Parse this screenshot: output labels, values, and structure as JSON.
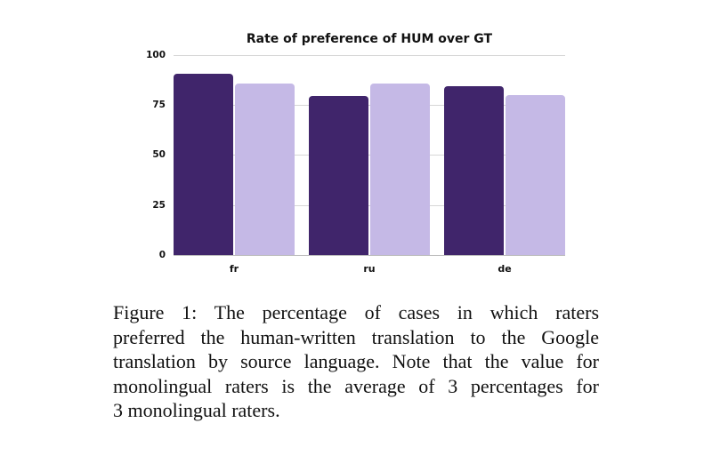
{
  "chart_data": {
    "type": "bar",
    "title": "Rate of preference of HUM over GT",
    "xlabel": "",
    "ylabel": "",
    "ylim": [
      0,
      100
    ],
    "yticks": [
      0,
      25,
      50,
      75,
      100
    ],
    "grid": true,
    "legend": null,
    "categories": [
      "fr",
      "ru",
      "de"
    ],
    "series": [
      {
        "name": "series-dark",
        "color": "#40256b",
        "values": [
          90.7,
          79.6,
          84.4
        ]
      },
      {
        "name": "series-light",
        "color": "#c5b9e6",
        "values": [
          85.8,
          85.8,
          80.0
        ]
      }
    ]
  },
  "chart": {
    "title": "Rate of preference of HUM over GT",
    "yticks": [
      "100",
      "75",
      "50",
      "25",
      "0"
    ],
    "xticks": [
      "fr",
      "ru",
      "de"
    ]
  },
  "caption": {
    "lines": [
      "Figure 1:  The percentage of cases in which raters",
      "preferred the human-written translation to the Google",
      "translation by source language. Note that the value for",
      "monolingual raters is the average of 3 percentages for",
      "3 monolingual raters."
    ]
  }
}
